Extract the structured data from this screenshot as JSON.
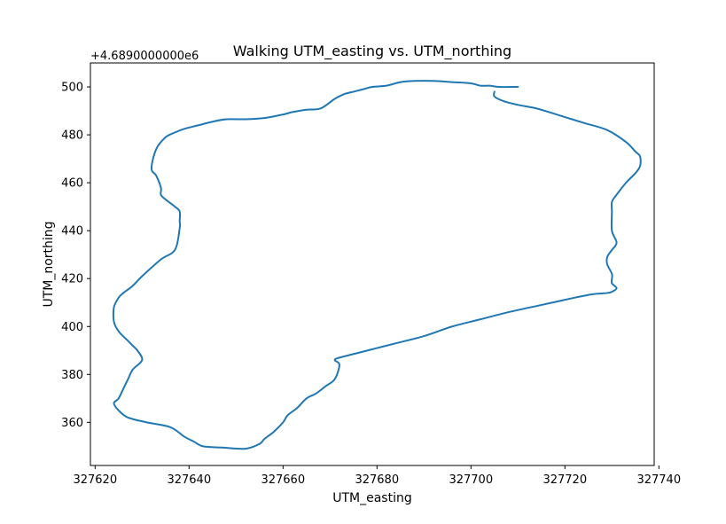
{
  "chart_data": {
    "type": "line",
    "title": "Walking UTM_easting vs. UTM_northing",
    "xlabel": "UTM_easting",
    "ylabel": "UTM_northing",
    "y_offset_label": "+4.6890000000e6",
    "xlim": [
      327619,
      327739
    ],
    "ylim": [
      342,
      510
    ],
    "x_ticks": [
      327620,
      327640,
      327660,
      327680,
      327700,
      327720,
      327740
    ],
    "y_ticks": [
      360,
      380,
      400,
      420,
      440,
      460,
      480,
      500
    ],
    "x_tick_labels": [
      "327620",
      "327640",
      "327660",
      "327680",
      "327700",
      "327720",
      "327740"
    ],
    "y_tick_labels": [
      "360",
      "380",
      "400",
      "420",
      "440",
      "460",
      "480",
      "500"
    ],
    "grid": false,
    "line_color": "#1f77b4",
    "series": [
      {
        "x": [
          327710,
          327706,
          327704,
          327702,
          327700,
          327696,
          327692,
          327688,
          327685,
          327682,
          327679,
          327677,
          327675,
          327673,
          327671,
          327668,
          327665,
          327662,
          327660,
          327656,
          327652,
          327648,
          327645,
          327642,
          327639,
          327637,
          327635,
          327633,
          327632,
          327633,
          327634,
          327634,
          327635,
          327637,
          327638,
          327638,
          327638,
          327637,
          327634,
          327630,
          327628,
          327626,
          327625,
          327624,
          327624,
          327625,
          327627,
          327628,
          327629,
          327630,
          327628,
          327627,
          327626,
          327625,
          327624,
          327625,
          327627,
          327631,
          327636,
          327639,
          327641,
          327643,
          327647,
          327652,
          327655,
          327656,
          327658,
          327660,
          327661,
          327663,
          327665,
          327667,
          327669,
          327671,
          327672,
          327671,
          327672,
          327676,
          327680,
          327684,
          327690,
          327696,
          327702,
          327708,
          327715,
          327722,
          327726,
          327729,
          327730,
          327731,
          327730,
          327730,
          327730,
          327729,
          327729,
          327730,
          327731,
          327730,
          327730,
          327730,
          327731,
          327733,
          327735,
          327736,
          327736,
          327735,
          327733,
          327729,
          327724,
          327719,
          327714,
          327710,
          327707,
          327705,
          327705
        ],
        "y": [
          500,
          500,
          500.5,
          500.5,
          501.5,
          502,
          502.5,
          502.5,
          502,
          500.5,
          500,
          499,
          498,
          497,
          495,
          491,
          490.5,
          489.5,
          488.5,
          487,
          486.5,
          486.5,
          485.5,
          484,
          482.5,
          481,
          479,
          474,
          466,
          463,
          458,
          455,
          453,
          450,
          448,
          444,
          441,
          432,
          428,
          421,
          417,
          414,
          412,
          408,
          402,
          398,
          394,
          392,
          390,
          386,
          382,
          378,
          374,
          370,
          368,
          365,
          362,
          360,
          358,
          354,
          352,
          350,
          349.5,
          349,
          351,
          353,
          356,
          360,
          363,
          366,
          370,
          372,
          375,
          378,
          384,
          386,
          387,
          389,
          391,
          393,
          396,
          400,
          403,
          406,
          409,
          412,
          413.5,
          414,
          414.5,
          416,
          418,
          420,
          422,
          426,
          429,
          432,
          435,
          440,
          448,
          452,
          455,
          460,
          464,
          467,
          471,
          473,
          477,
          482,
          485,
          488,
          491,
          492.5,
          494,
          496,
          498
        ]
      }
    ]
  }
}
